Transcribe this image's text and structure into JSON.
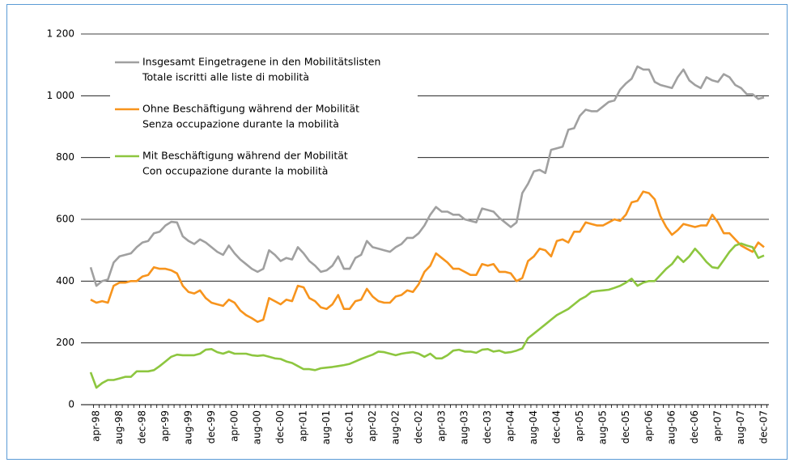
{
  "chart_data": {
    "type": "line",
    "categories": [
      null,
      "apr-98",
      null,
      null,
      null,
      "aug-98",
      null,
      null,
      null,
      "dec-98",
      null,
      null,
      null,
      "apr-99",
      null,
      null,
      null,
      "aug-99",
      null,
      null,
      null,
      "dec-99",
      null,
      null,
      null,
      "apr-00",
      null,
      null,
      null,
      "aug-00",
      null,
      null,
      null,
      "dec-00",
      null,
      null,
      null,
      "apr-01",
      null,
      null,
      null,
      "aug-01",
      null,
      null,
      null,
      "dec-01",
      null,
      null,
      null,
      "apr-02",
      null,
      null,
      null,
      "aug-02",
      null,
      null,
      null,
      "dec-02",
      null,
      null,
      null,
      "apr-03",
      null,
      null,
      null,
      "aug-03",
      null,
      null,
      null,
      "dec-03",
      null,
      null,
      null,
      "apr-04",
      null,
      null,
      null,
      "aug-04",
      null,
      null,
      null,
      "dec-04",
      null,
      null,
      null,
      "apr-05",
      null,
      null,
      null,
      "aug-05",
      null,
      null,
      null,
      "dec-05",
      null,
      null,
      null,
      "apr-06",
      null,
      null,
      null,
      "aug-06",
      null,
      null,
      null,
      "dec-06",
      null,
      null,
      null,
      "apr-07",
      null,
      null,
      null,
      "aug-07",
      null,
      null,
      null,
      "dec-07"
    ],
    "series": [
      {
        "name": [
          "Insgesamt Eingetragene in den Mobilitätslisten",
          "Totale iscritti alle liste di mobilità"
        ],
        "color": "#a0a0a0",
        "values": [
          445,
          385,
          400,
          405,
          460,
          480,
          485,
          490,
          510,
          525,
          530,
          555,
          560,
          580,
          592,
          590,
          545,
          530,
          520,
          535,
          525,
          510,
          495,
          485,
          515,
          490,
          470,
          455,
          440,
          430,
          440,
          500,
          485,
          465,
          475,
          470,
          510,
          490,
          465,
          450,
          430,
          435,
          450,
          480,
          440,
          440,
          475,
          485,
          530,
          510,
          505,
          500,
          495,
          510,
          520,
          540,
          540,
          555,
          580,
          615,
          640,
          625,
          625,
          615,
          615,
          600,
          595,
          590,
          635,
          630,
          625,
          605,
          590,
          575,
          590,
          685,
          715,
          755,
          760,
          750,
          825,
          830,
          835,
          890,
          895,
          935,
          955,
          950,
          950,
          965,
          980,
          985,
          1020,
          1040,
          1055,
          1095,
          1085,
          1085,
          1045,
          1035,
          1030,
          1025,
          1060,
          1085,
          1050,
          1035,
          1025,
          1060,
          1050,
          1045,
          1070,
          1060,
          1035,
          1025,
          1005,
          1005,
          990,
          995
        ]
      },
      {
        "name": [
          "Ohne Beschäftigung während der Mobilität",
          "Senza occupazione durante la mobilità"
        ],
        "color": "#f7941d",
        "values": [
          340,
          330,
          335,
          330,
          385,
          395,
          395,
          400,
          400,
          415,
          420,
          445,
          440,
          440,
          435,
          425,
          385,
          365,
          360,
          370,
          345,
          330,
          325,
          320,
          340,
          330,
          305,
          290,
          280,
          268,
          275,
          345,
          335,
          325,
          340,
          335,
          385,
          380,
          345,
          335,
          315,
          310,
          325,
          355,
          310,
          310,
          335,
          340,
          375,
          350,
          335,
          330,
          330,
          350,
          355,
          370,
          365,
          390,
          430,
          450,
          490,
          475,
          460,
          440,
          440,
          430,
          420,
          420,
          455,
          450,
          455,
          430,
          430,
          425,
          400,
          410,
          465,
          480,
          505,
          500,
          480,
          530,
          535,
          525,
          560,
          560,
          590,
          585,
          580,
          580,
          590,
          600,
          595,
          615,
          655,
          660,
          690,
          685,
          665,
          610,
          575,
          550,
          565,
          585,
          580,
          575,
          580,
          580,
          615,
          590,
          555,
          555,
          535,
          515,
          505,
          495,
          525,
          510
        ]
      },
      {
        "name": [
          "Mit Beschäftigung während der Mobilität",
          "Con occupazione durante la mobilità"
        ],
        "color": "#8dc63f",
        "values": [
          105,
          55,
          70,
          80,
          80,
          85,
          90,
          90,
          108,
          108,
          108,
          112,
          125,
          140,
          155,
          162,
          160,
          160,
          160,
          165,
          178,
          180,
          170,
          165,
          172,
          165,
          165,
          165,
          160,
          158,
          160,
          155,
          150,
          148,
          140,
          135,
          125,
          115,
          115,
          112,
          118,
          120,
          122,
          125,
          128,
          132,
          140,
          148,
          155,
          162,
          172,
          170,
          165,
          160,
          165,
          168,
          170,
          165,
          155,
          165,
          150,
          150,
          160,
          175,
          178,
          172,
          172,
          168,
          178,
          180,
          172,
          175,
          168,
          170,
          175,
          182,
          215,
          230,
          245,
          260,
          275,
          290,
          300,
          310,
          325,
          340,
          350,
          365,
          368,
          370,
          372,
          378,
          385,
          395,
          408,
          385,
          395,
          400,
          400,
          420,
          440,
          455,
          480,
          462,
          480,
          505,
          485,
          462,
          445,
          442,
          468,
          495,
          515,
          522,
          515,
          510,
          475,
          483
        ]
      }
    ],
    "ylim": [
      0,
      1200
    ],
    "yticks": [
      0,
      200,
      400,
      600,
      800,
      {
        "value": 1000,
        "label": "1 000"
      },
      {
        "value": 1200,
        "label": "1 200"
      }
    ],
    "grid": true
  }
}
